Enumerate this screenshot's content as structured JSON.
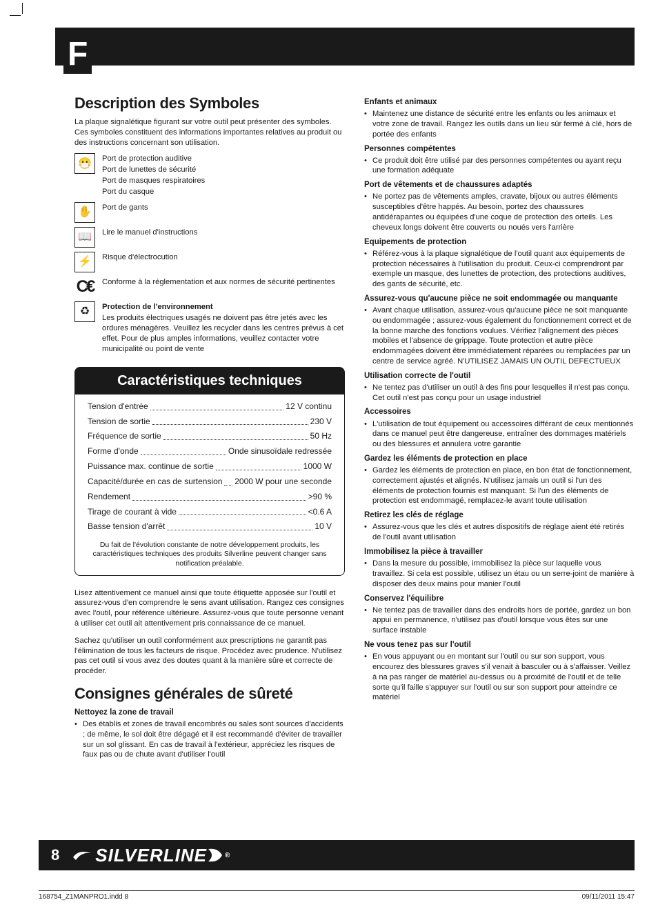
{
  "page": {
    "lang_letter": "F",
    "number": "8",
    "brand": "SILVERLINE",
    "indd_file": "168754_Z1MANPRO1.indd   8",
    "indd_date": "09/11/2011   15:47"
  },
  "colors": {
    "ink": "#1a1a1a",
    "paper": "#ffffff"
  },
  "symbols": {
    "heading": "Description des Symboles",
    "intro": "La plaque signalétique figurant sur votre outil peut présenter des symboles. Ces symboles constituent des informations importantes relatives au produit ou des instructions concernant son utilisation.",
    "rows": [
      {
        "icon": "😷",
        "name": "ppe-icon",
        "lines": [
          "Port de protection auditive",
          "Port de lunettes de sécurité",
          "Port de masques respiratoires",
          "Port du casque"
        ]
      },
      {
        "icon": "✋",
        "name": "gloves-icon",
        "lines": [
          "Port de gants"
        ]
      },
      {
        "icon": "📖",
        "name": "manual-icon",
        "lines": [
          "Lire le manuel d'instructions"
        ]
      },
      {
        "icon": "⚡",
        "name": "shock-icon",
        "lines": [
          "Risque d'électrocution"
        ]
      },
      {
        "icon": "CE",
        "name": "ce-icon",
        "ce": true,
        "lines": [
          "Conforme à la réglementation et aux normes de sécurité pertinentes"
        ]
      },
      {
        "icon": "♻",
        "name": "weee-icon",
        "bold": "Protection de l'environnement",
        "lines": [
          "Les produits électriques usagés ne doivent pas être jetés avec les ordures ménagères. Veuillez les recycler dans les centres prévus à cet effet. Pour de plus amples informations, veuillez contacter votre municipalité ou point de vente"
        ]
      }
    ]
  },
  "specs": {
    "title": "Caractéristiques techniques",
    "rows": [
      {
        "label": "Tension d'entrée",
        "value": "12 V continu"
      },
      {
        "label": "Tension de sortie",
        "value": "230 V"
      },
      {
        "label": "Fréquence de sortie",
        "value": "50 Hz"
      },
      {
        "label": "Forme d'onde",
        "value": "Onde sinusoïdale redressée"
      },
      {
        "label": "Puissance max. continue de sortie",
        "value": "1000 W"
      },
      {
        "label": "Capacité/durée en cas de surtension",
        "value": "2000 W pour une seconde"
      },
      {
        "label": "Rendement",
        "value": ">90 %"
      },
      {
        "label": "Tirage de courant à vide",
        "value": "<0.6 A"
      },
      {
        "label": "Basse tension d'arrêt",
        "value": "10 V"
      }
    ],
    "note": "Du fait de l'évolution constante de notre développement produits, les caractéristiques techniques des produits Silverline peuvent changer sans notification préalable."
  },
  "midtext": {
    "p1": "Lisez attentivement ce manuel ainsi que toute étiquette apposée sur l'outil et assurez-vous d'en comprendre le sens avant utilisation. Rangez ces consignes avec l'outil, pour référence ultérieure. Assurez-vous que toute personne venant à utiliser cet outil ait attentivement pris connaissance de ce manuel.",
    "p2": "Sachez qu'utiliser un outil conformément aux prescriptions ne garantit pas l'élimination de tous les facteurs de risque. Procédez avec prudence. N'utilisez pas cet outil si vous avez des doutes quant à la manière sûre et correcte de procéder."
  },
  "safety": {
    "heading": "Consignes générales de sûreté",
    "sections": [
      {
        "title": "Nettoyez la zone de travail",
        "body": "Des établis et zones de travail encombrés ou sales sont sources d'accidents ; de même, le sol doit être dégagé et il est recommandé d'éviter de travailler sur un sol glissant. En cas de travail à l'extérieur, appréciez les risques de faux pas ou de chute avant d'utiliser l'outil"
      },
      {
        "title": "Enfants et animaux",
        "body": "Maintenez une distance de sécurité entre les enfants ou les animaux et votre zone de travail. Rangez les outils dans un lieu sûr fermé à clé, hors de portée des enfants"
      },
      {
        "title": "Personnes compétentes",
        "body": "Ce produit doit être utilisé par des personnes compétentes ou ayant reçu une formation adéquate"
      },
      {
        "title": "Port de vêtements et de chaussures adaptés",
        "body": "Ne portez pas de vêtements amples, cravate, bijoux ou autres éléments susceptibles d'être happés. Au besoin, portez des chaussures antidérapantes ou équipées d'une coque de protection des orteils. Les cheveux longs doivent être couverts ou noués vers l'arrière"
      },
      {
        "title": "Equipements de protection",
        "body": "Référez-vous à la plaque signalétique de l'outil quant aux équipements de protection nécessaires à l'utilisation du produit. Ceux-ci comprendront par exemple un masque, des lunettes de protection, des protections auditives, des gants de sécurité, etc."
      },
      {
        "title": "Assurez-vous qu'aucune pièce ne soit endommagée ou manquante",
        "body": "Avant chaque utilisation, assurez-vous qu'aucune pièce ne soit manquante ou endommagée ; assurez-vous également du fonctionnement correct et de la bonne marche des fonctions voulues. Vérifiez l'alignement des pièces mobiles et l'absence de grippage. Toute protection et autre pièce endommagées doivent être immédiatement réparées ou remplacées par un centre de service agréé. N'UTILISEZ JAMAIS UN OUTIL DEFECTUEUX"
      },
      {
        "title": "Utilisation correcte de l'outil",
        "body": "Ne tentez pas d'utiliser un outil à des fins pour lesquelles il n'est pas conçu. Cet outil n'est pas conçu pour un usage industriel"
      },
      {
        "title": "Accessoires",
        "body": "L'utilisation de tout équipement ou accessoires différant de ceux mentionnés dans ce manuel peut être dangereuse, entraîner des dommages matériels ou des blessures et annulera votre garantie"
      },
      {
        "title": "Gardez les éléments de protection en place",
        "body": "Gardez les éléments de protection en place, en bon état de fonctionnement, correctement ajustés et alignés. N'utilisez jamais un outil si l'un des éléments de protection fournis est manquant. Si l'un des éléments de protection est endommagé, remplacez-le avant toute utilisation"
      },
      {
        "title": "Retirez les clés de réglage",
        "body": "Assurez-vous que les clés et autres dispositifs de réglage aient été retirés de l'outil avant utilisation"
      },
      {
        "title": "Immobilisez la pièce à travailler",
        "body": "Dans la mesure du possible, immobilisez la pièce sur laquelle vous travaillez. Si cela est possible, utilisez un étau ou un serre-joint de manière à disposer des deux mains pour manier l'outil"
      },
      {
        "title": "Conservez l'équilibre",
        "body": "Ne tentez pas de travailler dans des endroits hors de portée, gardez un bon appui en permanence, n'utilisez pas d'outil lorsque vous êtes sur une surface instable"
      },
      {
        "title": "Ne vous tenez pas sur l'outil",
        "body": "En vous appuyant ou en montant sur l'outil ou sur son support, vous encourez des blessures graves s'il venait à basculer ou à s'affaisser. Veillez à na pas ranger de matériel au-dessus ou à proximité de l'outil et de telle sorte qu'il faille s'appuyer sur l'outil ou sur son support pour atteindre ce matériel"
      }
    ]
  }
}
